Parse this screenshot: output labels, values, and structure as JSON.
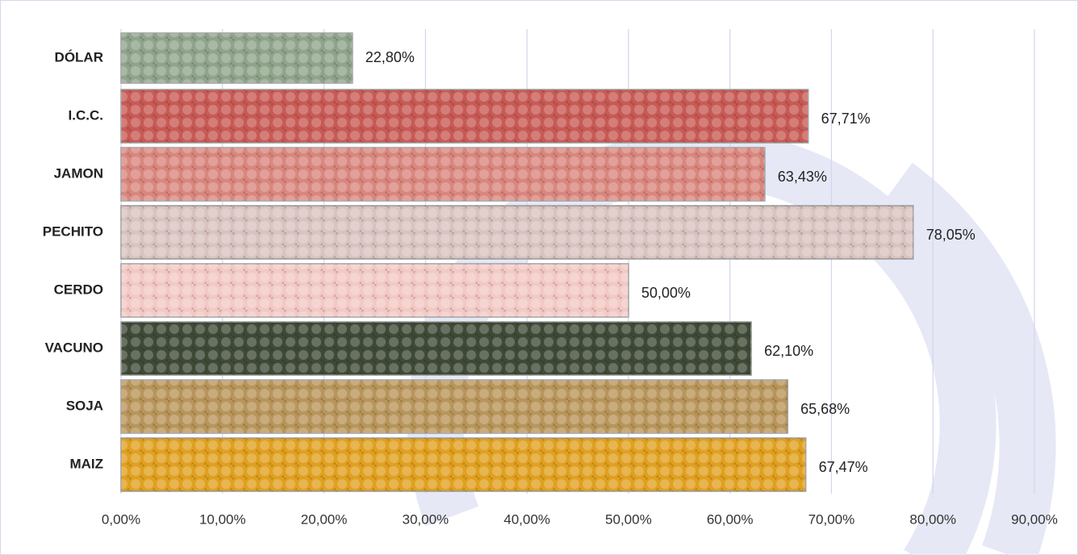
{
  "chart_data": {
    "type": "barh",
    "categories": [
      "DÓLAR",
      "I.C.C.",
      "JAMON",
      "PECHITO",
      "CERDO",
      "VACUNO",
      "SOJA",
      "MAIZ"
    ],
    "values": [
      22.8,
      67.71,
      63.43,
      78.05,
      50.0,
      62.1,
      65.68,
      67.47
    ],
    "value_labels": [
      "22,80%",
      "67,71%",
      "63,43%",
      "78,05%",
      "50,00%",
      "62,10%",
      "65,68%",
      "67,47%"
    ],
    "colors": [
      "#8fa48a",
      "#c85a55",
      "#d9877e",
      "#d9c3c0",
      "#f2c9c4",
      "#3f4a36",
      "#b8955a",
      "#e0a020"
    ],
    "xlim": [
      0,
      90
    ],
    "xticks": [
      {
        "value": 0,
        "label": "0,00%"
      },
      {
        "value": 10,
        "label": "10,00%"
      },
      {
        "value": 20,
        "label": "20,00%"
      },
      {
        "value": 30,
        "label": "30,00%"
      },
      {
        "value": 40,
        "label": "40,00%"
      },
      {
        "value": 50,
        "label": "50,00%"
      },
      {
        "value": 60,
        "label": "60,00%"
      },
      {
        "value": 70,
        "label": "70,00%"
      },
      {
        "value": 80,
        "label": "80,00%"
      },
      {
        "value": 90,
        "label": "90,00%"
      }
    ],
    "grid": true
  }
}
